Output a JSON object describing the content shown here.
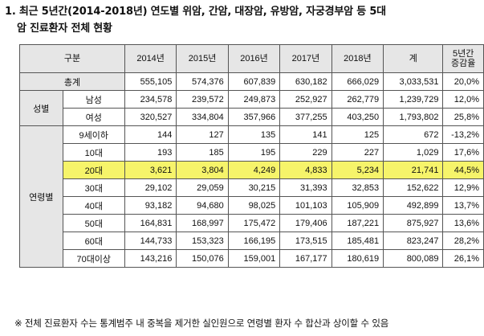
{
  "title": {
    "line1": "1. 최근 5년간(2014-2018년) 연도별 위암, 간암, 대장암, 유방암, 자궁경부암 등 5대",
    "line2": "암 진료환자 전체 현황"
  },
  "table": {
    "headers": [
      "구분",
      "2014년",
      "2015년",
      "2016년",
      "2017년",
      "2018년",
      "계",
      "5년간\n증감율"
    ],
    "total": {
      "label": "총계",
      "values": [
        "555,105",
        "574,376",
        "607,839",
        "630,182",
        "666,029",
        "3,033,531",
        "20,0%"
      ]
    },
    "gender": {
      "group": "성별",
      "rows": [
        {
          "label": "남성",
          "values": [
            "234,578",
            "239,572",
            "249,873",
            "252,927",
            "262,779",
            "1,239,729",
            "12,0%"
          ]
        },
        {
          "label": "여성",
          "values": [
            "320,527",
            "334,804",
            "357,966",
            "377,255",
            "403,250",
            "1,793,802",
            "25,8%"
          ]
        }
      ]
    },
    "age": {
      "group": "연령별",
      "rows": [
        {
          "label": "9세이하",
          "values": [
            "144",
            "127",
            "135",
            "141",
            "125",
            "672",
            "-13,2%"
          ]
        },
        {
          "label": "10대",
          "values": [
            "193",
            "185",
            "195",
            "229",
            "227",
            "1,029",
            "17,6%"
          ]
        },
        {
          "label": "20대",
          "values": [
            "3,621",
            "3,804",
            "4,249",
            "4,833",
            "5,234",
            "21,741",
            "44,5%"
          ]
        },
        {
          "label": "30대",
          "values": [
            "29,102",
            "29,059",
            "30,215",
            "31,393",
            "32,853",
            "152,622",
            "12,9%"
          ]
        },
        {
          "label": "40대",
          "values": [
            "93,182",
            "94,680",
            "98,025",
            "101,103",
            "105,909",
            "492,899",
            "13,7%"
          ]
        },
        {
          "label": "50대",
          "values": [
            "164,831",
            "168,997",
            "175,472",
            "179,406",
            "187,221",
            "875,927",
            "13,6%"
          ]
        },
        {
          "label": "60대",
          "values": [
            "144,733",
            "153,323",
            "166,195",
            "173,515",
            "185,481",
            "823,247",
            "28,2%"
          ]
        },
        {
          "label": "70대이상",
          "values": [
            "143,216",
            "150,076",
            "159,001",
            "167,177",
            "180,619",
            "800,089",
            "26,1%"
          ]
        }
      ]
    },
    "highlight_color": "#f6f46a"
  },
  "footnote": "※ 전체 진료환자 수는 통계범주 내 중복을 제거한 실인원으로 연령별 환자 수 합산과 상이할 수 있음"
}
